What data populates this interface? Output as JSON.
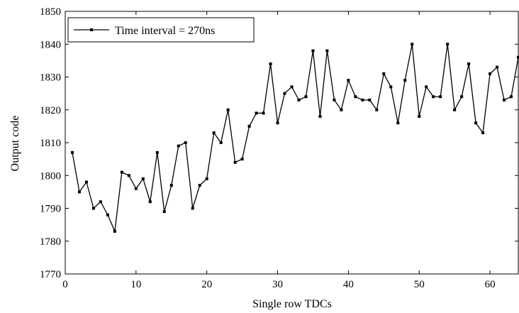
{
  "chart_data": {
    "type": "line",
    "title": "",
    "xlabel": "Single row TDCs",
    "ylabel": "Output code",
    "xlim": [
      0,
      64
    ],
    "ylim": [
      1770,
      1850
    ],
    "xticks": [
      0,
      10,
      20,
      30,
      40,
      50,
      60
    ],
    "yticks": [
      1770,
      1780,
      1790,
      1800,
      1810,
      1820,
      1830,
      1840,
      1850
    ],
    "grid": false,
    "legend_position": "top-left",
    "series": [
      {
        "name": "Time interval = 270ns",
        "color": "#000000",
        "marker": "square",
        "x": [
          1,
          2,
          3,
          4,
          5,
          6,
          7,
          8,
          9,
          10,
          11,
          12,
          13,
          14,
          15,
          16,
          17,
          18,
          19,
          20,
          21,
          22,
          23,
          24,
          25,
          26,
          27,
          28,
          29,
          30,
          31,
          32,
          33,
          34,
          35,
          36,
          37,
          38,
          39,
          40,
          41,
          42,
          43,
          44,
          45,
          46,
          47,
          48,
          49,
          50,
          51,
          52,
          53,
          54,
          55,
          56,
          57,
          58,
          59,
          60,
          61,
          62,
          63,
          64
        ],
        "values": [
          1807,
          1795,
          1798,
          1790,
          1792,
          1788,
          1783,
          1801,
          1800,
          1796,
          1799,
          1792,
          1807,
          1789,
          1797,
          1809,
          1810,
          1790,
          1797,
          1799,
          1813,
          1810,
          1820,
          1804,
          1805,
          1815,
          1819,
          1819,
          1834,
          1816,
          1825,
          1827,
          1823,
          1824,
          1838,
          1818,
          1838,
          1823,
          1820,
          1829,
          1824,
          1823,
          1823,
          1820,
          1831,
          1827,
          1816,
          1829,
          1840,
          1818,
          1827,
          1824,
          1824,
          1840,
          1820,
          1824,
          1834,
          1816,
          1813,
          1831,
          1833,
          1823,
          1824,
          1836
        ]
      }
    ]
  }
}
